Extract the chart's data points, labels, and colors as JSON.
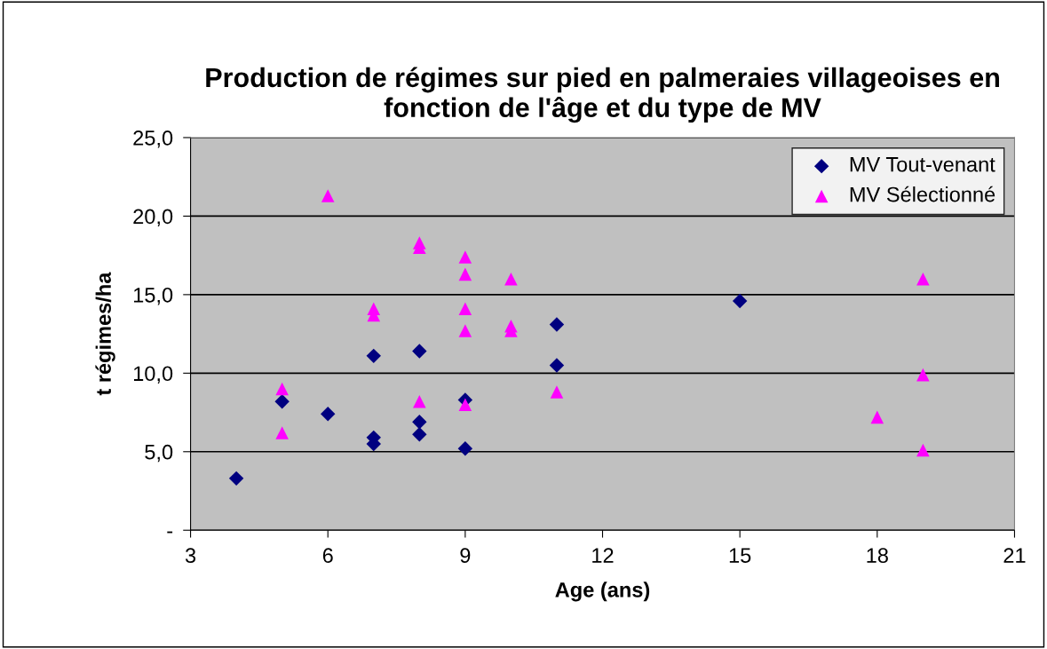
{
  "chart_data": {
    "type": "scatter",
    "title": "Production de régimes sur pied en palmeraies villageoises en fonction de l'âge et du type de MV",
    "xlabel": "Age (ans)",
    "ylabel": "t régimes/ha",
    "xlim": [
      3,
      21
    ],
    "xticks": [
      3,
      6,
      9,
      12,
      15,
      18,
      21
    ],
    "ylim": [
      0,
      25
    ],
    "yticks": [
      {
        "value": 0,
        "label": "-"
      },
      {
        "value": 5,
        "label": "5,0"
      },
      {
        "value": 10,
        "label": "10,0"
      },
      {
        "value": 15,
        "label": "15,0"
      },
      {
        "value": 20,
        "label": "20,0"
      },
      {
        "value": 25,
        "label": "25,0"
      }
    ],
    "grid": "y",
    "legend": "top right",
    "series": [
      {
        "name": "MV Tout-venant",
        "color": "#000080",
        "marker": "diamond",
        "x": [
          4,
          5,
          6,
          7,
          7,
          7,
          8,
          8,
          8,
          9,
          9,
          11,
          11,
          15
        ],
        "values": [
          3.3,
          8.2,
          7.4,
          11.1,
          5.9,
          5.5,
          11.4,
          6.9,
          6.1,
          8.3,
          5.2,
          13.1,
          10.5,
          14.6
        ]
      },
      {
        "name": "MV Sélectionné",
        "color": "#ff00ff",
        "marker": "triangle",
        "x": [
          5,
          5,
          6,
          7,
          7,
          8,
          8,
          8,
          9,
          9,
          9,
          9,
          9,
          10,
          10,
          10,
          11,
          18,
          19,
          19,
          19
        ],
        "values": [
          9.0,
          6.2,
          21.3,
          14.1,
          13.7,
          18.3,
          18.0,
          8.2,
          17.4,
          16.3,
          14.1,
          12.7,
          8.0,
          16.0,
          13.0,
          12.7,
          8.8,
          7.2,
          16.0,
          9.9,
          5.1
        ]
      }
    ]
  }
}
